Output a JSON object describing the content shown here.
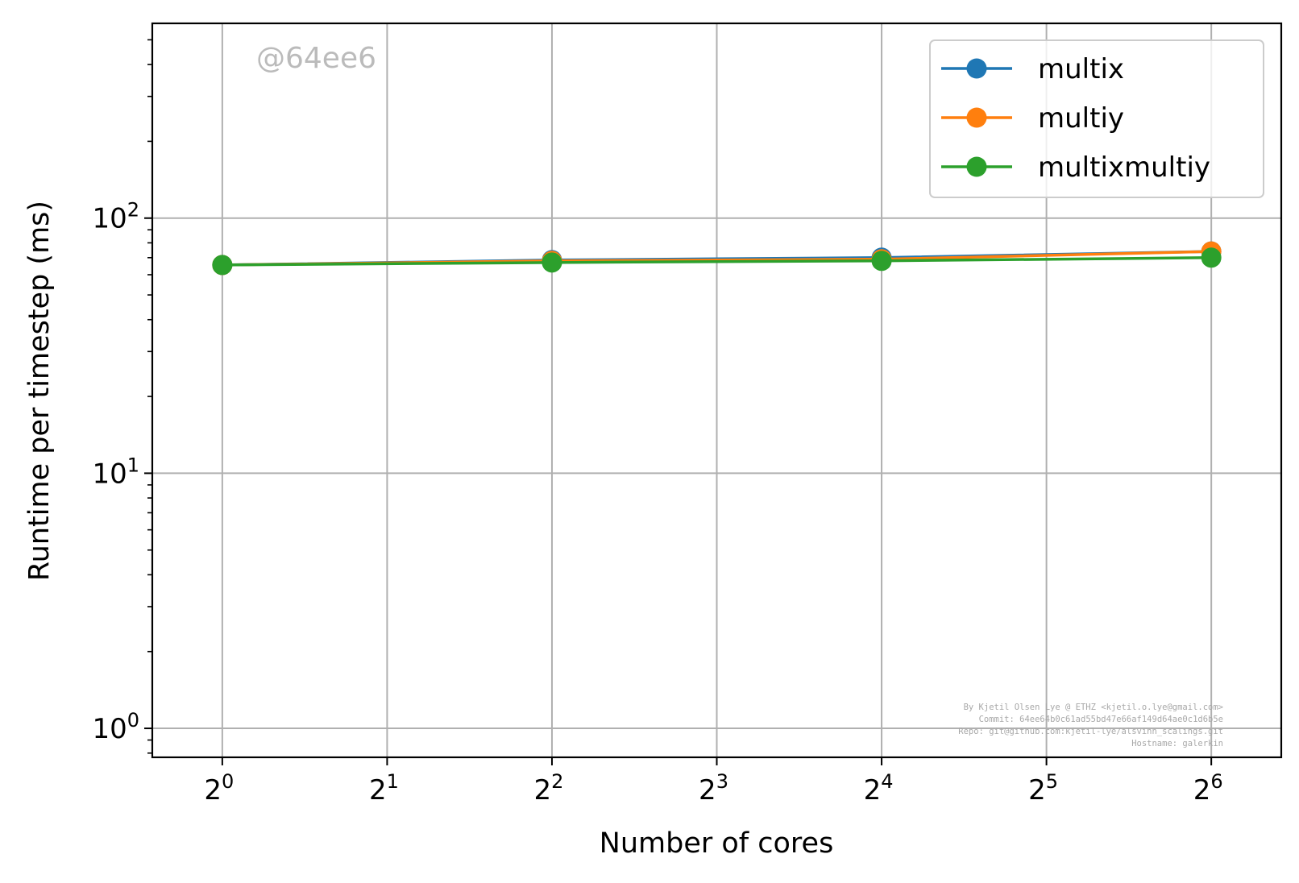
{
  "chart_data": {
    "type": "line",
    "xlabel": "Number of cores",
    "ylabel": "Runtime per timestep (ms)",
    "x": [
      1,
      4,
      16,
      64
    ],
    "x_scale": "log2",
    "y_scale": "log10",
    "xlim": [
      0.745,
      85.9
    ],
    "ylim": [
      0.77,
      580
    ],
    "x_ticks": [
      {
        "value": 1,
        "base": "2",
        "exp": "0"
      },
      {
        "value": 2,
        "base": "2",
        "exp": "1"
      },
      {
        "value": 4,
        "base": "2",
        "exp": "2"
      },
      {
        "value": 8,
        "base": "2",
        "exp": "3"
      },
      {
        "value": 16,
        "base": "2",
        "exp": "4"
      },
      {
        "value": 32,
        "base": "2",
        "exp": "5"
      },
      {
        "value": 64,
        "base": "2",
        "exp": "6"
      }
    ],
    "y_ticks": [
      {
        "value": 1,
        "base": "10",
        "exp": "0"
      },
      {
        "value": 10,
        "base": "10",
        "exp": "1"
      },
      {
        "value": 100,
        "base": "10",
        "exp": "2"
      }
    ],
    "grid": true,
    "legend_position": "top-right",
    "series": [
      {
        "name": "multix",
        "color": "#1f77b4",
        "values": [
          65.5,
          68.5,
          70.0,
          74.0
        ]
      },
      {
        "name": "multiy",
        "color": "#ff7f0e",
        "values": [
          65.5,
          68.0,
          69.0,
          74.0
        ]
      },
      {
        "name": "multixmultiy",
        "color": "#2ca02c",
        "values": [
          65.5,
          67.0,
          68.0,
          70.0
        ]
      }
    ],
    "watermark": "@64ee6",
    "footer_lines": [
      "By Kjetil Olsen Lye @ ETHZ <kjetil.o.lye@gmail.com>",
      "Commit: 64ee64b0c61ad55bd47e66af149d64ae0c1d6b5e",
      "Repo: git@github.com:kjetil-lye/alsvinn_scalings.git",
      "Hostname: galerkin"
    ]
  }
}
